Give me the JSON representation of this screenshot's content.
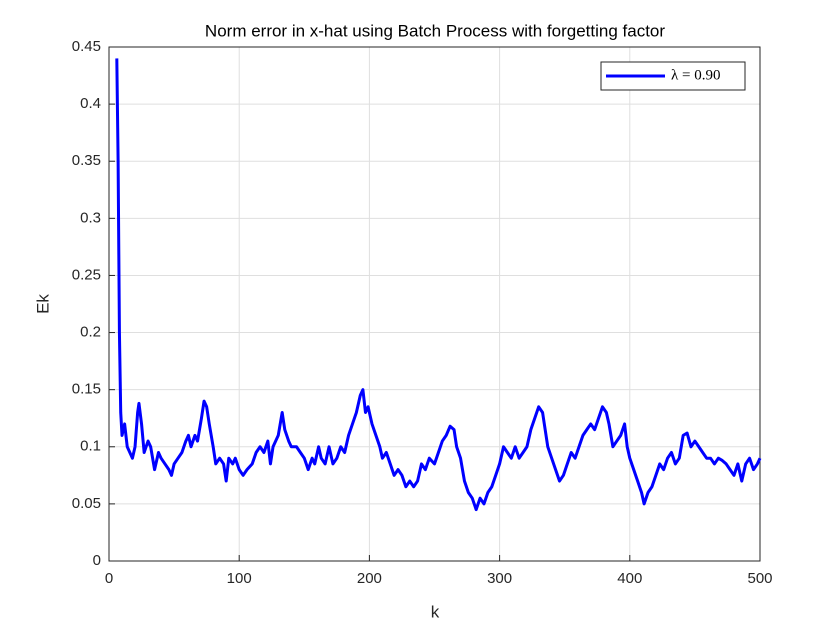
{
  "chart_data": {
    "type": "line",
    "title": "Norm error in x-hat using Batch Process with forgetting factor",
    "xlabel": "k",
    "ylabel": "Ek",
    "x": [
      6,
      7,
      8,
      9,
      10,
      12,
      14,
      16,
      18,
      20,
      22,
      23,
      25,
      27,
      30,
      32,
      35,
      38,
      40,
      43,
      46,
      48,
      50,
      53,
      56,
      59,
      61,
      63,
      66,
      68,
      71,
      73,
      75,
      77,
      80,
      82,
      85,
      88,
      90,
      92,
      95,
      97,
      100,
      103,
      106,
      110,
      113,
      116,
      119,
      122,
      124,
      126,
      130,
      133,
      135,
      138,
      140,
      144,
      147,
      150,
      153,
      156,
      158,
      161,
      163,
      166,
      169,
      172,
      175,
      178,
      181,
      184,
      187,
      190,
      193,
      195,
      197,
      199,
      202,
      205,
      208,
      210,
      213,
      216,
      219,
      222,
      225,
      228,
      231,
      234,
      237,
      240,
      243,
      246,
      250,
      253,
      256,
      259,
      262,
      265,
      267,
      270,
      273,
      276,
      279,
      282,
      285,
      288,
      291,
      294,
      297,
      300,
      303,
      306,
      309,
      312,
      315,
      318,
      321,
      324,
      327,
      330,
      333,
      335,
      337,
      340,
      343,
      346,
      349,
      352,
      355,
      358,
      361,
      364,
      367,
      370,
      373,
      376,
      379,
      382,
      384,
      387,
      390,
      393,
      396,
      398,
      400,
      403,
      406,
      409,
      411,
      414,
      417,
      420,
      423,
      426,
      429,
      432,
      435,
      438,
      441,
      444,
      447,
      450,
      453,
      456,
      459,
      462,
      465,
      468,
      471,
      474,
      477,
      480,
      483,
      486,
      489,
      492,
      495,
      498,
      500
    ],
    "series": [
      {
        "name": "λ = 0.90",
        "color": "#0000ff",
        "values": [
          0.44,
          0.35,
          0.2,
          0.13,
          0.11,
          0.12,
          0.1,
          0.095,
          0.09,
          0.1,
          0.13,
          0.138,
          0.12,
          0.095,
          0.105,
          0.1,
          0.08,
          0.095,
          0.09,
          0.085,
          0.08,
          0.075,
          0.085,
          0.09,
          0.095,
          0.105,
          0.11,
          0.1,
          0.11,
          0.105,
          0.125,
          0.14,
          0.135,
          0.12,
          0.1,
          0.085,
          0.09,
          0.085,
          0.07,
          0.09,
          0.085,
          0.09,
          0.08,
          0.075,
          0.08,
          0.085,
          0.095,
          0.1,
          0.095,
          0.105,
          0.085,
          0.1,
          0.11,
          0.13,
          0.115,
          0.105,
          0.1,
          0.1,
          0.095,
          0.09,
          0.08,
          0.09,
          0.085,
          0.1,
          0.09,
          0.085,
          0.1,
          0.085,
          0.09,
          0.1,
          0.095,
          0.11,
          0.12,
          0.13,
          0.145,
          0.15,
          0.13,
          0.135,
          0.12,
          0.11,
          0.1,
          0.09,
          0.095,
          0.085,
          0.075,
          0.08,
          0.075,
          0.065,
          0.07,
          0.065,
          0.07,
          0.085,
          0.08,
          0.09,
          0.085,
          0.095,
          0.105,
          0.11,
          0.118,
          0.115,
          0.1,
          0.09,
          0.07,
          0.06,
          0.055,
          0.045,
          0.055,
          0.05,
          0.06,
          0.065,
          0.075,
          0.085,
          0.1,
          0.095,
          0.09,
          0.1,
          0.09,
          0.095,
          0.1,
          0.115,
          0.125,
          0.135,
          0.13,
          0.115,
          0.1,
          0.09,
          0.08,
          0.07,
          0.075,
          0.085,
          0.095,
          0.09,
          0.1,
          0.11,
          0.115,
          0.12,
          0.115,
          0.125,
          0.135,
          0.13,
          0.12,
          0.1,
          0.105,
          0.11,
          0.12,
          0.1,
          0.09,
          0.08,
          0.07,
          0.06,
          0.05,
          0.06,
          0.065,
          0.075,
          0.085,
          0.08,
          0.09,
          0.095,
          0.085,
          0.09,
          0.11,
          0.112,
          0.1,
          0.105,
          0.1,
          0.095,
          0.09,
          0.09,
          0.085,
          0.09,
          0.088,
          0.085,
          0.08,
          0.075,
          0.085,
          0.07,
          0.085,
          0.09,
          0.08,
          0.085,
          0.09
        ]
      }
    ],
    "xlim": [
      0,
      500
    ],
    "xticks": [
      0,
      100,
      200,
      300,
      400,
      500
    ],
    "ylim": [
      0,
      0.45
    ],
    "yticks": [
      0,
      0.05,
      0.1,
      0.15,
      0.2,
      0.25,
      0.3,
      0.35,
      0.4,
      0.45
    ],
    "grid": true,
    "legend": "northeast"
  }
}
